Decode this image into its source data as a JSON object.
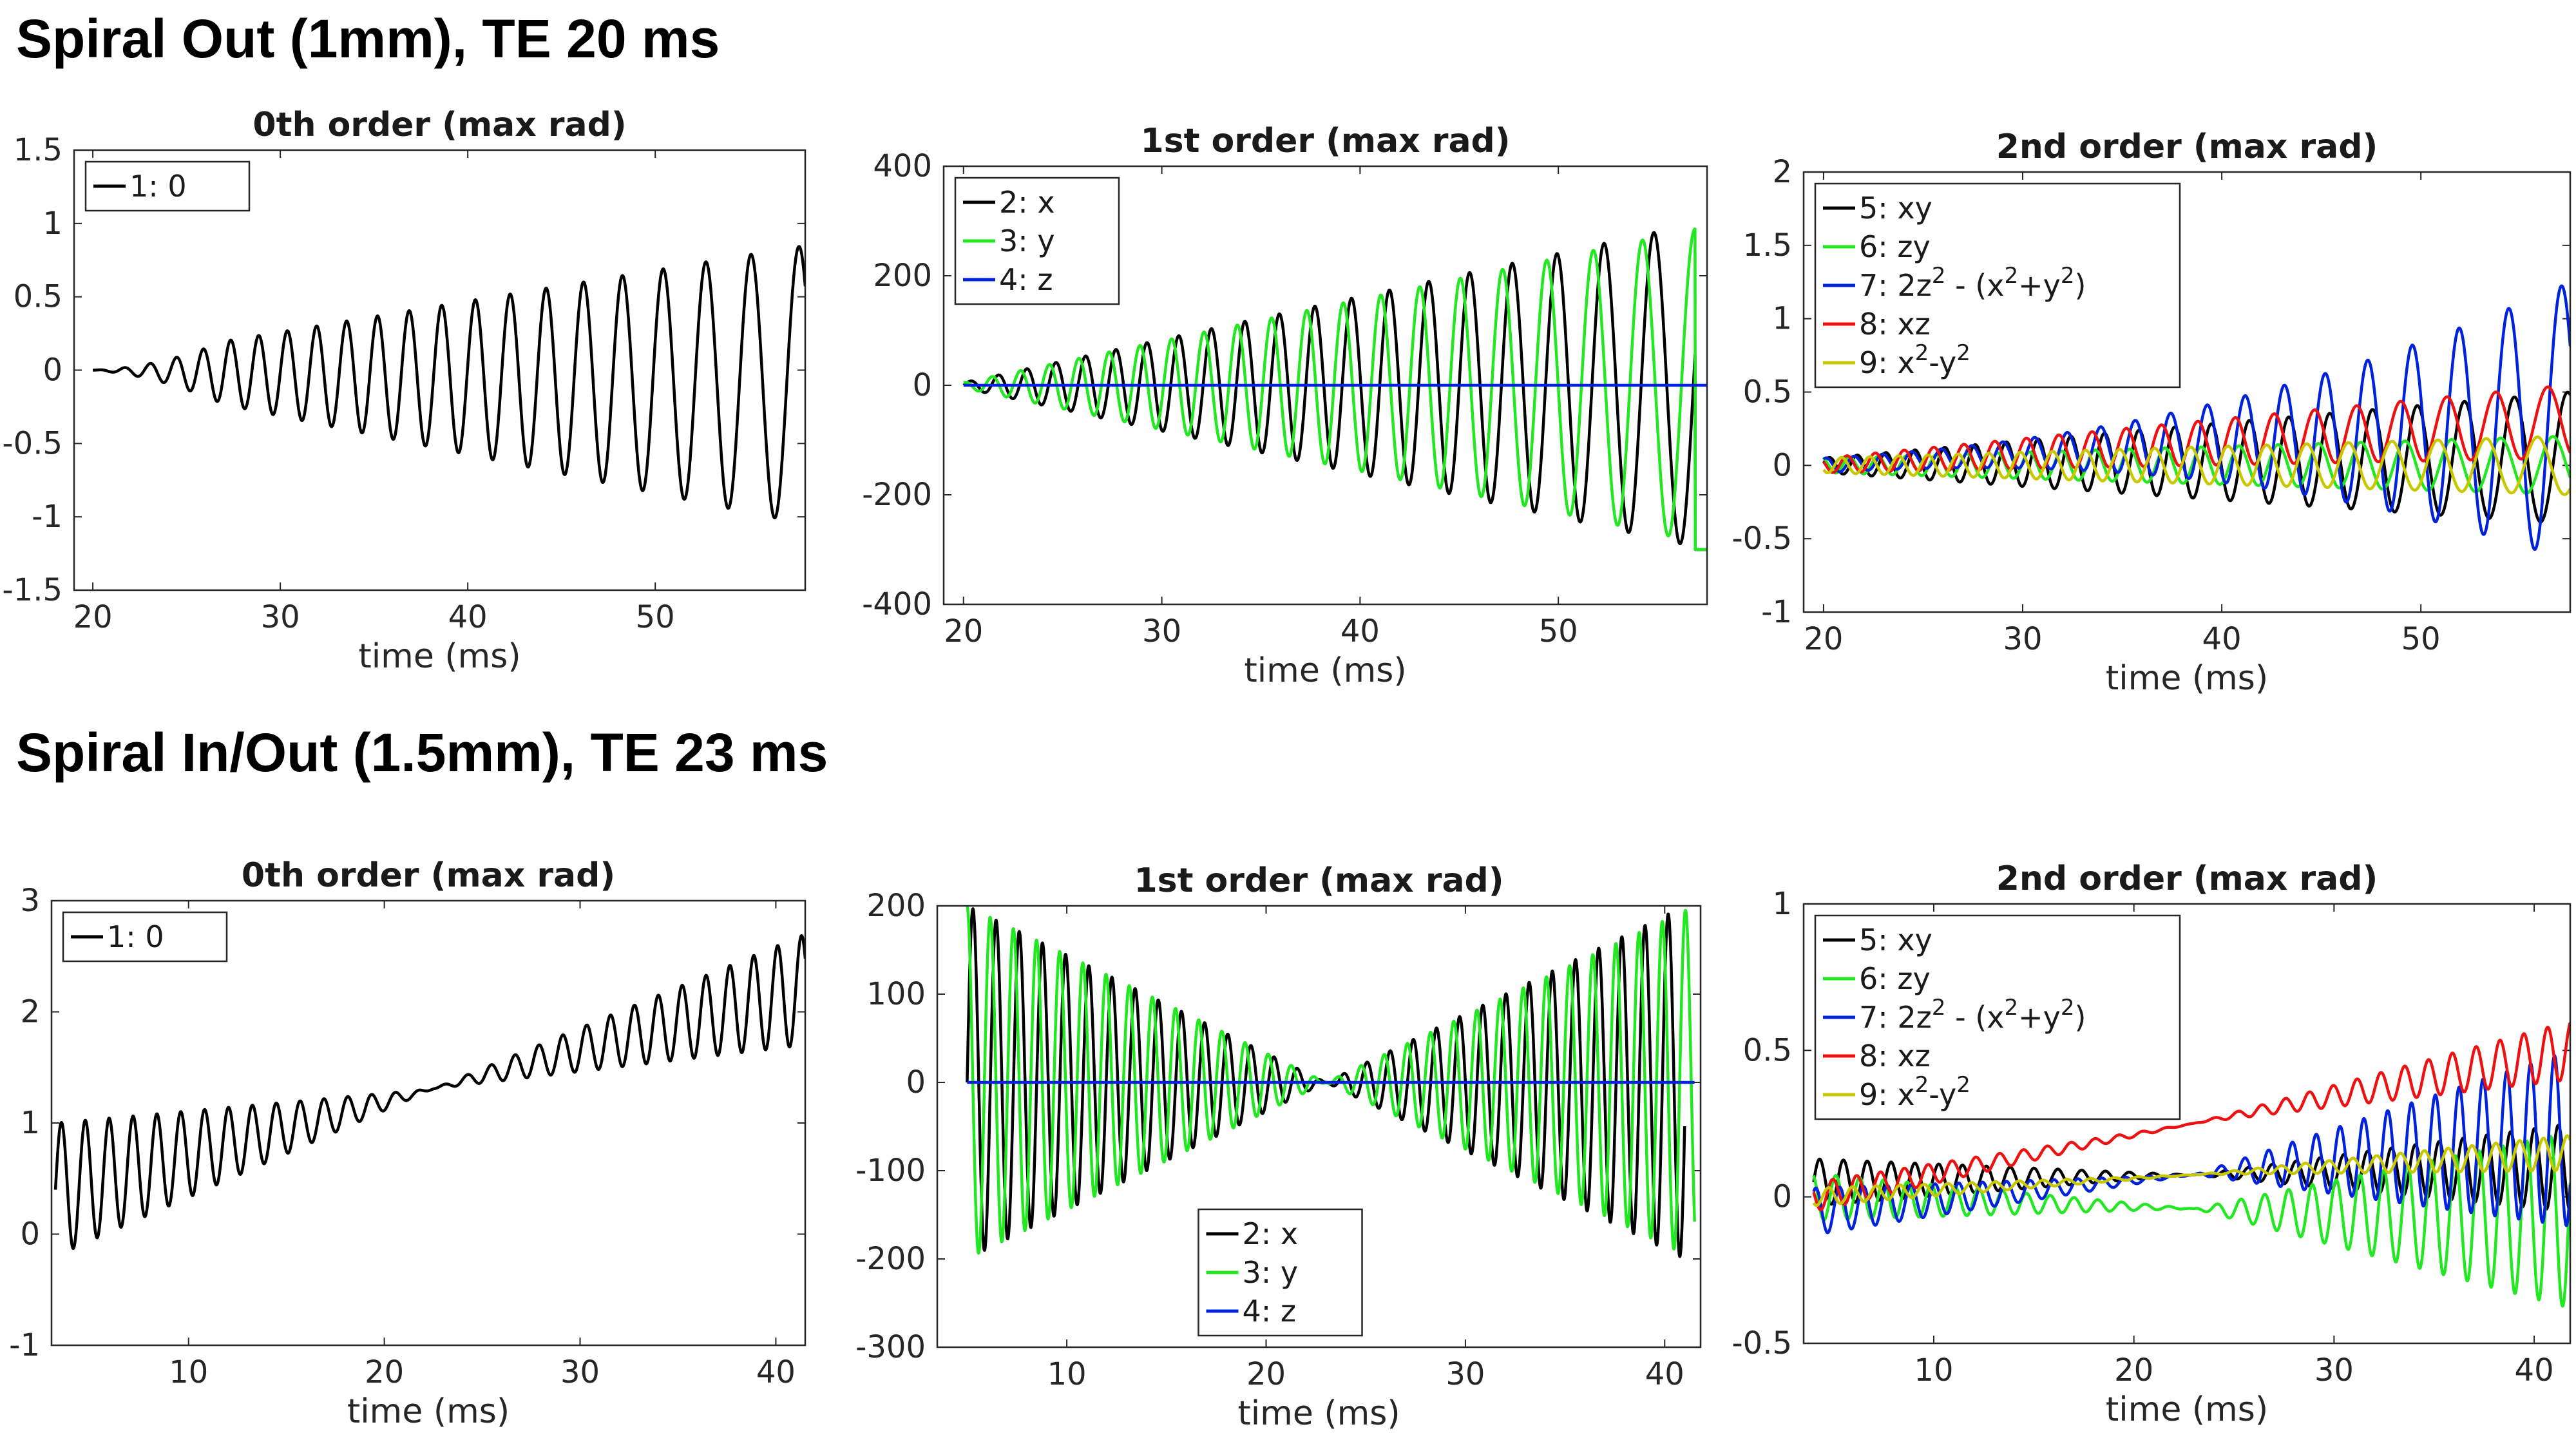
{
  "sections": [
    {
      "title": "Spiral Out (1mm), TE 20 ms"
    },
    {
      "title": "Spiral In/Out (1.5mm), TE 23 ms"
    }
  ],
  "colors": {
    "black": "#000000",
    "green": "#22e822",
    "blue": "#0022dd",
    "red": "#ee1111",
    "yellow": "#c8c800"
  },
  "chart_data": [
    {
      "type": "line",
      "title": "0th order (max rad)",
      "xlabel": "time (ms)",
      "ylabel": "",
      "xlim": [
        19,
        58
      ],
      "ylim": [
        -1.5,
        1.5
      ],
      "xticks": [
        20,
        30,
        40,
        50
      ],
      "yticks": [
        -1.5,
        -1,
        -0.5,
        0,
        0.5,
        1,
        1.5
      ],
      "yticklabels": [
        "-1.5",
        "-1",
        "-0.5",
        "0",
        "0.5",
        "1",
        "1.5"
      ],
      "legend": "top-left",
      "series": [
        {
          "name": "1: 0",
          "color": "#000000",
          "signal": {
            "t0": 20,
            "t1": 58,
            "shape": "spiral-out",
            "env_start": 0.05,
            "env_end": 0.95,
            "ramp": 7,
            "offset_start": 0.0,
            "offset_end": -0.1,
            "cycles_per_ms": 0.75,
            "phase": 0.0
          }
        }
      ]
    },
    {
      "type": "line",
      "title": "1st order (max rad)",
      "xlabel": "time (ms)",
      "ylabel": "",
      "xlim": [
        19,
        57.5
      ],
      "ylim": [
        -400,
        400
      ],
      "xticks": [
        20,
        30,
        40,
        50
      ],
      "yticks": [
        -400,
        -200,
        0,
        200,
        400
      ],
      "yticklabels": [
        "-400",
        "-200",
        "0",
        "200",
        "400"
      ],
      "legend": "top-left",
      "series": [
        {
          "name": "2: x",
          "color": "#000000",
          "signal": {
            "t0": 20,
            "t1": 57.5,
            "shape": "spiral-out",
            "env_start": 5,
            "env_end": 300,
            "ramp": 0,
            "offset_start": 0,
            "offset_end": 0,
            "cycles_per_ms": 0.72,
            "phase": 0.0,
            "end_drop": -300
          }
        },
        {
          "name": "3: y",
          "color": "#22e822",
          "signal": {
            "t0": 20,
            "t1": 57.5,
            "shape": "spiral-out",
            "env_start": 5,
            "env_end": 290,
            "ramp": 0,
            "offset_start": 0,
            "offset_end": 0,
            "cycles_per_ms": 0.72,
            "phase": 1.4,
            "end_drop": -300
          }
        },
        {
          "name": "4: z",
          "color": "#0022dd",
          "signal": {
            "t0": 20,
            "t1": 57.5,
            "shape": "flat",
            "env_start": 1,
            "env_end": 2,
            "ramp": 0,
            "offset_start": 0,
            "offset_end": 0,
            "cycles_per_ms": 0.72,
            "phase": 0.0
          }
        }
      ]
    },
    {
      "type": "line",
      "title": "2nd order (max rad)",
      "xlabel": "time (ms)",
      "ylabel": "",
      "xlim": [
        19,
        57.5
      ],
      "ylim": [
        -1,
        2
      ],
      "xticks": [
        20,
        30,
        40,
        50
      ],
      "yticks": [
        -1,
        -0.5,
        0,
        0.5,
        1,
        1.5,
        2
      ],
      "yticklabels": [
        "-1",
        "-0.5",
        "0",
        "0.5",
        "1",
        "1.5",
        "2"
      ],
      "legend": "top-left",
      "series": [
        {
          "name": "5: xy",
          "color": "#000000",
          "signal": {
            "t0": 20,
            "t1": 57.5,
            "shape": "spiral-out",
            "env_start": 0.05,
            "env_end": 0.45,
            "ramp": 0,
            "offset_start": 0,
            "offset_end": 0.05,
            "cycles_per_ms": 0.72,
            "phase": 0.3
          }
        },
        {
          "name": "6: zy",
          "color": "#22e822",
          "signal": {
            "t0": 20,
            "t1": 57.5,
            "shape": "spiral-out",
            "env_start": 0.05,
            "env_end": 0.2,
            "ramp": 0,
            "offset_start": 0,
            "offset_end": 0.0,
            "cycles_per_ms": 0.72,
            "phase": 2.0
          }
        },
        {
          "name": "7: 2z² - (x²+y²)",
          "color": "#0022dd",
          "signal": {
            "t0": 20,
            "t1": 57.5,
            "shape": "spiral-out",
            "env_start": 0.05,
            "env_end": 0.95,
            "ramp": 0,
            "offset_start": 0,
            "offset_end": 0.3,
            "cycles_per_ms": 0.72,
            "phase": 1.0,
            "power": 2.2
          }
        },
        {
          "name": "8: xz",
          "color": "#ee1111",
          "signal": {
            "t0": 20,
            "t1": 57.5,
            "shape": "spiral-out",
            "env_start": 0.05,
            "env_end": 0.25,
            "ramp": 0,
            "offset_start": 0,
            "offset_end": 0.3,
            "cycles_per_ms": 0.72,
            "phase": 2.6
          }
        },
        {
          "name": "9: x²-y²",
          "color": "#c8c800",
          "signal": {
            "t0": 20,
            "t1": 57.5,
            "shape": "spiral-out",
            "env_start": 0.05,
            "env_end": 0.2,
            "ramp": 0,
            "offset_start": 0,
            "offset_end": 0.0,
            "cycles_per_ms": 0.72,
            "phase": 3.8
          }
        }
      ]
    },
    {
      "type": "line",
      "title": "0th order (max rad)",
      "xlabel": "time (ms)",
      "ylabel": "",
      "xlim": [
        3,
        41.5
      ],
      "ylim": [
        -1,
        3
      ],
      "xticks": [
        10,
        20,
        30,
        40
      ],
      "yticks": [
        -1,
        0,
        1,
        2,
        3
      ],
      "yticklabels": [
        "-1",
        "0",
        "1",
        "2",
        "3"
      ],
      "legend": "top-left",
      "series": [
        {
          "name": "1: 0",
          "color": "#000000",
          "signal": {
            "t0": 3.2,
            "t1": 41.5,
            "shape": "in-out",
            "env_start": 0.6,
            "env_end": 0.5,
            "ramp": 0,
            "offset_start": 0.4,
            "offset_end": 2.2,
            "cycles_per_ms": 0.82,
            "phase": 0.0,
            "center": 22.5
          }
        }
      ]
    },
    {
      "type": "line",
      "title": "1st order (max rad)",
      "xlabel": "time (ms)",
      "ylabel": "",
      "xlim": [
        3.5,
        41.8
      ],
      "ylim": [
        -300,
        200
      ],
      "xticks": [
        10,
        20,
        30,
        40
      ],
      "yticks": [
        -300,
        -200,
        -100,
        0,
        100,
        200
      ],
      "yticklabels": [
        "-300",
        "-200",
        "-100",
        "0",
        "100",
        "200"
      ],
      "legend": "bottom-center",
      "series": [
        {
          "name": "2: x",
          "color": "#000000",
          "signal": {
            "t0": 5,
            "t1": 41,
            "shape": "in-out",
            "env_start": 200,
            "env_end": 200,
            "ramp": 0,
            "offset_start": 0,
            "offset_end": 0,
            "cycles_per_ms": 0.86,
            "phase": 0.0,
            "center": 23
          }
        },
        {
          "name": "3: y",
          "color": "#22e822",
          "signal": {
            "t0": 5,
            "t1": 41.5,
            "shape": "in-out",
            "env_start": 200,
            "env_end": 200,
            "ramp": 0,
            "offset_start": 0,
            "offset_end": 0,
            "cycles_per_ms": 0.86,
            "phase": 1.6,
            "center": 23
          }
        },
        {
          "name": "4: z",
          "color": "#0022dd",
          "signal": {
            "t0": 5,
            "t1": 41.5,
            "shape": "flat",
            "env_start": 1,
            "env_end": 1,
            "ramp": 0,
            "offset_start": 0,
            "offset_end": 0,
            "cycles_per_ms": 0.86,
            "phase": 0.0
          }
        }
      ]
    },
    {
      "type": "line",
      "title": "2nd order (max rad)",
      "xlabel": "time (ms)",
      "ylabel": "",
      "xlim": [
        3.5,
        41.8
      ],
      "ylim": [
        -0.5,
        1
      ],
      "xticks": [
        10,
        20,
        30,
        40
      ],
      "yticks": [
        -0.5,
        0,
        0.5,
        1
      ],
      "yticklabels": [
        "-0.5",
        "0",
        "0.5",
        "1"
      ],
      "legend": "top-left",
      "series": [
        {
          "name": "5: xy",
          "color": "#000000",
          "signal": {
            "t0": 4,
            "t1": 41.8,
            "shape": "in-out",
            "env_start": 0.08,
            "env_end": 0.15,
            "ramp": 0,
            "offset_start": 0.05,
            "offset_end": 0.1,
            "cycles_per_ms": 0.84,
            "phase": 0.0,
            "center": 23
          }
        },
        {
          "name": "6: zy",
          "color": "#22e822",
          "signal": {
            "t0": 4,
            "t1": 41.8,
            "shape": "in-out",
            "env_start": 0.08,
            "env_end": 0.3,
            "ramp": 0,
            "offset_start": 0.0,
            "offset_end": -0.08,
            "cycles_per_ms": 0.84,
            "phase": 2.0,
            "center": 23
          }
        },
        {
          "name": "7: 2z² - (x²+y²)",
          "color": "#0022dd",
          "signal": {
            "t0": 4,
            "t1": 41.8,
            "shape": "in-out",
            "env_start": 0.08,
            "env_end": 0.3,
            "ramp": 0,
            "offset_start": -0.05,
            "offset_end": 0.2,
            "cycles_per_ms": 0.84,
            "phase": 1.0,
            "center": 23
          }
        },
        {
          "name": "8: xz",
          "color": "#ee1111",
          "signal": {
            "t0": 4,
            "t1": 41.8,
            "shape": "in-out",
            "env_start": 0.05,
            "env_end": 0.1,
            "ramp": 0,
            "offset_start": 0.0,
            "offset_end": 0.5,
            "cycles_per_ms": 0.84,
            "phase": 2.8,
            "center": 23
          }
        },
        {
          "name": "9: x²-y²",
          "color": "#c8c800",
          "signal": {
            "t0": 4,
            "t1": 41.8,
            "shape": "in-out",
            "env_start": 0.03,
            "env_end": 0.06,
            "ramp": 0,
            "offset_start": 0.0,
            "offset_end": 0.15,
            "cycles_per_ms": 0.84,
            "phase": 3.9,
            "center": 23
          }
        }
      ]
    }
  ]
}
